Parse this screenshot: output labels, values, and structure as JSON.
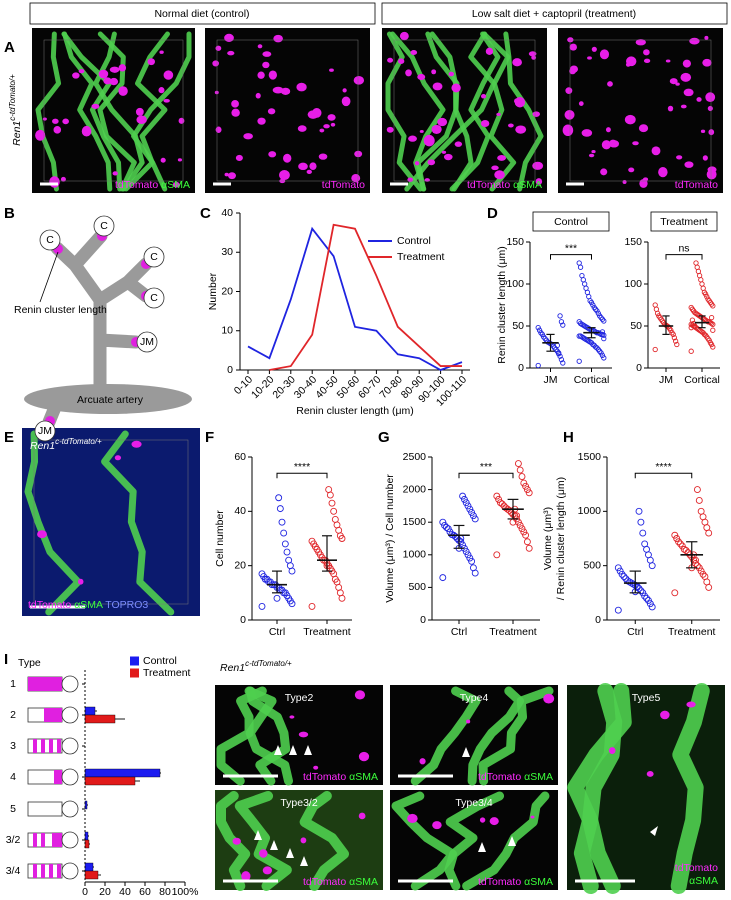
{
  "panel_labels": [
    "A",
    "B",
    "C",
    "D",
    "E",
    "F",
    "G",
    "H",
    "I"
  ],
  "genotype": {
    "gene": "Ren1",
    "allele": "c-tdTomato/+"
  },
  "panel_a": {
    "headers": [
      "Normal diet (control)",
      "Low salt diet + captopril (treatment)"
    ],
    "image_stains": [
      [
        "tdTomato",
        "αSMA"
      ],
      [
        "tdTomato"
      ],
      [
        "tdTomato",
        "αSMA"
      ],
      [
        "tdTomato"
      ]
    ]
  },
  "panel_b": {
    "nodes": [
      "C",
      "C",
      "C",
      "C",
      "JM",
      "JM"
    ],
    "labels": [
      "Renin cluster length",
      "Arcuate artery"
    ]
  },
  "panel_e": {
    "stains": [
      "tdTomato",
      "αSMA",
      "TOPRO3"
    ]
  },
  "panel_i_images": [
    {
      "title": "Type2",
      "stains": [
        "tdTomato",
        "αSMA"
      ]
    },
    {
      "title": "Type4",
      "stains": [
        "tdTomato",
        "αSMA"
      ]
    },
    {
      "title": "Type5",
      "stains": [
        "tdTomato",
        "αSMA"
      ]
    },
    {
      "title": "Type3/2",
      "stains": [
        "tdTomato",
        "αSMA"
      ]
    },
    {
      "title": "Type3/4",
      "stains": [
        "tdTomato",
        "αSMA"
      ]
    }
  ],
  "chart_data": [
    {
      "type": "line",
      "xlabel": "Renin cluster length (μm)",
      "ylabel": "Number",
      "categories": [
        "0-10",
        "10-20",
        "20-30",
        "30-40",
        "40-50",
        "50-60",
        "60-70",
        "70-80",
        "80-90",
        "90-100",
        "100-110"
      ],
      "series": [
        {
          "name": "Control",
          "color": "#1f24e0",
          "values": [
            6,
            3,
            18,
            36,
            29,
            11,
            10,
            4,
            3,
            0,
            2
          ]
        },
        {
          "name": "Treatment",
          "color": "#e0262a",
          "values": [
            null,
            0,
            1,
            9,
            37,
            36,
            24,
            11,
            6,
            1,
            1
          ]
        }
      ],
      "ylim": [
        0,
        40
      ],
      "yticks": [
        0,
        10,
        20,
        30,
        40
      ],
      "legend": "upper right"
    },
    {
      "type": "dot",
      "title": "Control",
      "ylabel": "Renin cluster length (μm)",
      "categories": [
        "JM",
        "Cortical"
      ],
      "annotation": "***",
      "ylim": [
        0,
        150
      ],
      "yticks": [
        0,
        50,
        100,
        150
      ],
      "groups": [
        {
          "color": "#1f24e0",
          "values": [
            3,
            6,
            10,
            14,
            17,
            20,
            22,
            24,
            26,
            28,
            29,
            30,
            31,
            33,
            35,
            37,
            40,
            42,
            45,
            48,
            51,
            55,
            62,
            18,
            27
          ],
          "center": 30,
          "interval": [
            20,
            40
          ]
        },
        {
          "color": "#1f24e0",
          "values": [
            8,
            12,
            15,
            18,
            20,
            22,
            24,
            25,
            27,
            28,
            30,
            31,
            32,
            33,
            34,
            35,
            36,
            37,
            38,
            38,
            39,
            40,
            40,
            41,
            42,
            42,
            43,
            44,
            45,
            45,
            46,
            47,
            48,
            49,
            50,
            51,
            52,
            53,
            55,
            56,
            58,
            60,
            62,
            65,
            68,
            70,
            72,
            75,
            78,
            80,
            85,
            90,
            95,
            100,
            105,
            110,
            120,
            125,
            35,
            43
          ],
          "center": 42,
          "interval": [
            36,
            48
          ]
        }
      ]
    },
    {
      "type": "dot",
      "title": "Treatment",
      "categories": [
        "JM",
        "Cortical"
      ],
      "annotation": "ns",
      "ylim": [
        0,
        150
      ],
      "yticks": [
        0,
        50,
        100,
        150
      ],
      "groups": [
        {
          "color": "#e0262a",
          "values": [
            22,
            28,
            32,
            36,
            40,
            42,
            45,
            47,
            49,
            50,
            51,
            52,
            54,
            56,
            58,
            60,
            62,
            65,
            70,
            75
          ],
          "center": 50,
          "interval": [
            40,
            62
          ]
        },
        {
          "color": "#e0262a",
          "values": [
            20,
            25,
            28,
            30,
            33,
            35,
            37,
            39,
            40,
            42,
            43,
            44,
            45,
            46,
            47,
            48,
            49,
            50,
            51,
            52,
            52,
            53,
            54,
            55,
            55,
            56,
            57,
            58,
            59,
            60,
            61,
            62,
            63,
            64,
            65,
            66,
            68,
            70,
            72,
            74,
            76,
            78,
            80,
            82,
            85,
            88,
            90,
            95,
            100,
            105,
            110,
            115,
            120,
            125,
            50,
            53,
            57,
            48,
            45,
            60
          ],
          "center": 54,
          "interval": [
            48,
            62
          ]
        }
      ]
    },
    {
      "type": "dot",
      "ylabel": "Cell number",
      "categories": [
        "Ctrl",
        "Treatment"
      ],
      "annotation": "****",
      "ylim": [
        0,
        60
      ],
      "yticks": [
        0,
        20,
        40,
        60
      ],
      "groups": [
        {
          "color": "#1f24e0",
          "values": [
            5,
            6,
            7,
            8,
            9,
            10,
            10,
            11,
            11,
            12,
            12,
            13,
            13,
            13,
            14,
            14,
            15,
            15,
            16,
            17,
            18,
            20,
            22,
            25,
            28,
            32,
            36,
            41,
            45,
            8
          ],
          "center": 13,
          "interval": [
            10,
            18
          ]
        },
        {
          "color": "#e0262a",
          "values": [
            5,
            8,
            10,
            12,
            14,
            15,
            17,
            18,
            19,
            20,
            21,
            22,
            22,
            23,
            24,
            25,
            26,
            27,
            28,
            29,
            30,
            31,
            33,
            35,
            37,
            40,
            43,
            46,
            48,
            20
          ],
          "center": 22,
          "interval": [
            18,
            31
          ]
        }
      ]
    },
    {
      "type": "dot",
      "ylabel": "Volume (μm³) / Cell number",
      "categories": [
        "Ctrl",
        "Treatment"
      ],
      "annotation": "***",
      "ylim": [
        0,
        2500
      ],
      "yticks": [
        0,
        500,
        1000,
        1500,
        2000,
        2500
      ],
      "groups": [
        {
          "color": "#1f24e0",
          "values": [
            650,
            720,
            800,
            900,
            950,
            1000,
            1050,
            1100,
            1150,
            1200,
            1220,
            1250,
            1280,
            1300,
            1310,
            1350,
            1400,
            1420,
            1450,
            1500,
            1550,
            1600,
            1650,
            1700,
            1750,
            1800,
            1850,
            1900,
            1250,
            1100
          ],
          "center": 1300,
          "interval": [
            1100,
            1450
          ]
        },
        {
          "color": "#e0262a",
          "values": [
            1000,
            1100,
            1200,
            1300,
            1350,
            1400,
            1450,
            1500,
            1550,
            1600,
            1620,
            1650,
            1680,
            1700,
            1720,
            1750,
            1780,
            1800,
            1850,
            1900,
            1950,
            2000,
            2050,
            2100,
            2200,
            2300,
            2400,
            1600,
            1700,
            1500
          ],
          "center": 1700,
          "interval": [
            1550,
            1850
          ]
        }
      ]
    },
    {
      "type": "dot",
      "ylabel": [
        "Volume (μm³)",
        "/ Renin cluster length (μm)"
      ],
      "categories": [
        "Ctrl",
        "Treatment"
      ],
      "annotation": "****",
      "ylim": [
        0,
        1500
      ],
      "yticks": [
        0,
        500,
        1000,
        1500
      ],
      "groups": [
        {
          "color": "#1f24e0",
          "values": [
            90,
            120,
            150,
            180,
            200,
            220,
            250,
            270,
            290,
            300,
            320,
            330,
            340,
            350,
            360,
            380,
            400,
            420,
            450,
            480,
            500,
            550,
            600,
            650,
            700,
            800,
            900,
            1000,
            310,
            260
          ],
          "center": 340,
          "interval": [
            250,
            450
          ]
        },
        {
          "color": "#e0262a",
          "values": [
            250,
            300,
            350,
            400,
            420,
            450,
            480,
            500,
            520,
            550,
            580,
            600,
            620,
            640,
            650,
            680,
            700,
            720,
            750,
            780,
            800,
            850,
            900,
            950,
            1000,
            1100,
            1200,
            550,
            600,
            480
          ],
          "center": 600,
          "interval": [
            480,
            720
          ]
        }
      ]
    },
    {
      "type": "barh",
      "title": "Type",
      "categories": [
        "1",
        "2",
        "3",
        "4",
        "5",
        "3/2",
        "3/4"
      ],
      "series": [
        {
          "name": "Control",
          "color": "#1c1cf0",
          "values": [
            0,
            10,
            0,
            75,
            2,
            3,
            8
          ],
          "errors": [
            0,
            2,
            0,
            1,
            1,
            1,
            1
          ]
        },
        {
          "name": "Treatment",
          "color": "#e11a1a",
          "values": [
            0,
            30,
            0,
            50,
            0,
            4,
            13
          ],
          "errors": [
            0,
            10,
            0,
            5,
            0,
            1,
            3
          ]
        }
      ],
      "xlim": [
        0,
        100
      ],
      "xticks": [
        0,
        20,
        40,
        60,
        80,
        {
          "value": 100,
          "label": "100%"
        }
      ],
      "legend": "upper right"
    }
  ]
}
